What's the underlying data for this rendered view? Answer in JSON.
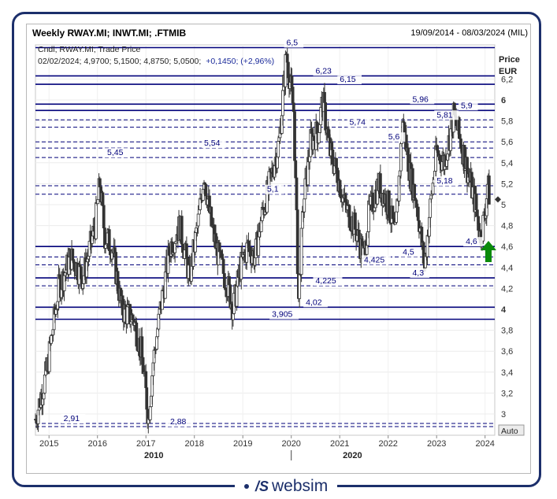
{
  "header": {
    "title": "Weekly RWAY.MI; INWT.MI; .FTMIB",
    "date_range": "19/09/2014 - 08/03/2024 (MIL)"
  },
  "legend": {
    "line1": "Cndl; RWAY.MI; Trade Price",
    "line2_prefix": "02/02/2024; 4,9700; 5,1500; 4,8750; 5,0500;",
    "line2_change": "+0,1450; (+2,96%)"
  },
  "brand": {
    "logo": "/S",
    "name": "websim"
  },
  "colors": {
    "accent": "#1c2f6b",
    "level": "#00007a",
    "candle": "#333333",
    "arrow": "#0a8a0a"
  },
  "chart_data": {
    "type": "candlestick",
    "ylabel": "Price",
    "yunit": "EUR",
    "ylim": [
      2.88,
      6.5
    ],
    "yticks": [
      3,
      3.2,
      3.4,
      3.6,
      3.8,
      4,
      4.2,
      4.4,
      4.6,
      4.8,
      5,
      5.2,
      5.4,
      5.6,
      5.8,
      6,
      6.2
    ],
    "ytick_labels": [
      "3",
      "3,2",
      "3,4",
      "3,6",
      "3,8",
      "4",
      "4,2",
      "4,4",
      "4,6",
      "4,8",
      "5",
      "5,2",
      "5,4",
      "5,6",
      "5,8",
      "6",
      "6,2"
    ],
    "bold_ticks": [
      4,
      6
    ],
    "x_years": [
      "2015",
      "2016",
      "2017",
      "2018",
      "2019",
      "2020",
      "2021",
      "2022",
      "2023",
      "2024"
    ],
    "x_decades": [
      "2010",
      "2020"
    ],
    "x_range": [
      "19/09/2014",
      "08/03/2024"
    ],
    "auto_label": "Auto",
    "last_price": 5.05,
    "levels": [
      {
        "value": 6.5,
        "label": "6,5",
        "style": "solid",
        "at": "2019.9"
      },
      {
        "value": 6.23,
        "label": "6,23",
        "style": "solid",
        "at": "2020.5"
      },
      {
        "value": 6.15,
        "label": "6,15",
        "style": "solid",
        "at": "2021.0"
      },
      {
        "value": 5.96,
        "label": "5,96",
        "style": "solid",
        "at": "2022.5"
      },
      {
        "value": 5.9,
        "label": "5,9",
        "style": "solid",
        "at": "2023.5"
      },
      {
        "value": 5.81,
        "label": "5,81",
        "style": "dashed",
        "at": "2023.0"
      },
      {
        "value": 5.74,
        "label": "5,74",
        "style": "dashed",
        "at": "2021.2"
      },
      {
        "value": 5.6,
        "label": "5,6",
        "style": "dashed",
        "at": "2022.0"
      },
      {
        "value": 5.54,
        "label": "5,54",
        "style": "dashed",
        "at": "2018.2"
      },
      {
        "value": 5.45,
        "label": "5,45",
        "style": "dashed",
        "at": "2016.2"
      },
      {
        "value": 5.18,
        "label": "5,18",
        "style": "dashed",
        "at": "2023.0"
      },
      {
        "value": 5.1,
        "label": "5,1",
        "style": "dashed",
        "at": "2019.5"
      },
      {
        "value": 4.6,
        "label": "4,6",
        "style": "solid",
        "at": "2023.6"
      },
      {
        "value": 4.5,
        "label": "4,5",
        "style": "dashed",
        "at": "2022.3"
      },
      {
        "value": 4.425,
        "label": "4,425",
        "style": "dashed",
        "at": "2021.5"
      },
      {
        "value": 4.3,
        "label": "4,3",
        "style": "solid",
        "at": "2022.5"
      },
      {
        "value": 4.225,
        "label": "4,225",
        "style": "dashed",
        "at": "2020.5"
      },
      {
        "value": 4.02,
        "label": "4,02",
        "style": "solid",
        "at": "2020.3"
      },
      {
        "value": 3.905,
        "label": "3,905",
        "style": "solid",
        "at": "2019.6"
      },
      {
        "value": 2.91,
        "label": "2,91",
        "style": "dashed",
        "at": "2015.3"
      },
      {
        "value": 2.88,
        "label": "2,88",
        "style": "dashed",
        "at": "2017.5"
      }
    ],
    "price_path": [
      [
        2014.72,
        2.95
      ],
      [
        2014.95,
        3.4
      ],
      [
        2015.2,
        4.2
      ],
      [
        2015.45,
        4.5
      ],
      [
        2015.7,
        4.3
      ],
      [
        2015.95,
        4.8
      ],
      [
        2016.05,
        5.2
      ],
      [
        2016.15,
        4.7
      ],
      [
        2016.3,
        4.6
      ],
      [
        2016.5,
        4.0
      ],
      [
        2016.75,
        3.9
      ],
      [
        2016.9,
        3.6
      ],
      [
        2017.0,
        3.2
      ],
      [
        2017.05,
        2.95
      ],
      [
        2017.15,
        3.5
      ],
      [
        2017.3,
        4.0
      ],
      [
        2017.5,
        4.6
      ],
      [
        2017.7,
        4.8
      ],
      [
        2017.9,
        4.3
      ],
      [
        2018.1,
        4.9
      ],
      [
        2018.2,
        5.3
      ],
      [
        2018.35,
        4.8
      ],
      [
        2018.5,
        4.5
      ],
      [
        2018.7,
        4.2
      ],
      [
        2018.8,
        4.0
      ],
      [
        2018.95,
        4.4
      ],
      [
        2019.1,
        4.6
      ],
      [
        2019.25,
        4.5
      ],
      [
        2019.4,
        4.9
      ],
      [
        2019.6,
        5.3
      ],
      [
        2019.75,
        5.6
      ],
      [
        2019.9,
        6.45
      ],
      [
        2020.05,
        5.9
      ],
      [
        2020.15,
        4.1
      ],
      [
        2020.25,
        5.0
      ],
      [
        2020.4,
        5.6
      ],
      [
        2020.55,
        5.7
      ],
      [
        2020.65,
        6.0
      ],
      [
        2020.8,
        5.5
      ],
      [
        2020.95,
        5.3
      ],
      [
        2021.1,
        5.0
      ],
      [
        2021.3,
        4.8
      ],
      [
        2021.5,
        4.5
      ],
      [
        2021.6,
        4.9
      ],
      [
        2021.8,
        5.2
      ],
      [
        2022.0,
        5.0
      ],
      [
        2022.15,
        4.7
      ],
      [
        2022.3,
        5.8
      ],
      [
        2022.45,
        5.3
      ],
      [
        2022.6,
        5.0
      ],
      [
        2022.75,
        4.4
      ],
      [
        2022.85,
        4.9
      ],
      [
        2023.0,
        5.5
      ],
      [
        2023.15,
        5.4
      ],
      [
        2023.25,
        5.6
      ],
      [
        2023.35,
        5.85
      ],
      [
        2023.5,
        5.6
      ],
      [
        2023.65,
        5.3
      ],
      [
        2023.8,
        5.0
      ],
      [
        2023.9,
        4.7
      ],
      [
        2024.0,
        4.9
      ],
      [
        2024.05,
        5.2
      ],
      [
        2024.1,
        5.05
      ]
    ]
  }
}
